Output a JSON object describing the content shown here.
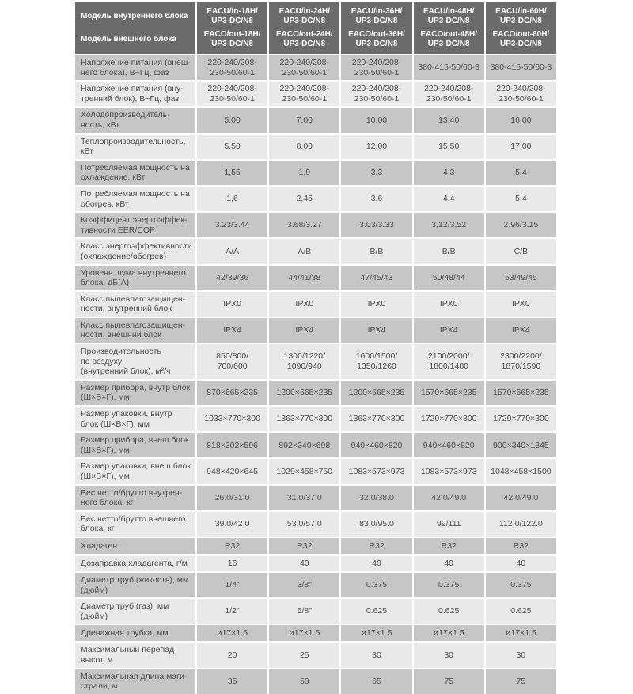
{
  "colors": {
    "header_bg": "#6b6b6b",
    "header_text": "#ffffff",
    "row_dark_bg": "#c6c6c6",
    "row_light_bg": "#e9e9e9",
    "body_text": "#4d4d4d",
    "page_bg": "#ffffff"
  },
  "table": {
    "header": {
      "indoor_model_label": "Модель внутреннего блока",
      "outdoor_model_label": "Модель внешнего блока",
      "models": [
        {
          "indoor": "EACU/in-18H/\nUP3-DC/N8",
          "outdoor": "EACO/out-18H/\nUP3-DC/N8"
        },
        {
          "indoor": "EACU/in-24H/\nUP3-DC/N8",
          "outdoor": "EACO/out-24H/\nUP3-DC/N8"
        },
        {
          "indoor": "EACU/in-36H/\nUP3-DC/N8",
          "outdoor": "EACO/out-36H/\nUP3-DC/N8"
        },
        {
          "indoor": "EACU/in-48H/\nUP3-DC/N8",
          "outdoor": "EACO/out-48H/\nUP3-DC/N8"
        },
        {
          "indoor": "EACU/in-60H/\nUP3-DC/N8",
          "outdoor": "EACO/out-60H/\nUP3-DC/N8"
        }
      ]
    },
    "rows": [
      {
        "label": "Напряжение питания (внеш-\nнего блока), В~Гц, фаз",
        "values": [
          "220-240/208-\n230-50/60-1",
          "220-240/208-\n230-50/60-1",
          "220-240/208-\n230-50/60-1",
          "380-415-50/60-3",
          "380-415-50/60-3"
        ]
      },
      {
        "label": "Напряжение питания (вну-\nтренний блок), В~Гц, фаз",
        "values": [
          "220-240/208-\n230-50/60-1",
          "220-240/208-\n230-50/60-1",
          "220-240/208-\n230-50/60-1",
          "220-240/208-\n230-50/60-1",
          "220-240/208-\n230-50/60-1"
        ]
      },
      {
        "label": "Холодопроизводитель-\nность, кВт",
        "values": [
          "5.00",
          "7.00",
          "10.00",
          "13.40",
          "16.00"
        ]
      },
      {
        "label": "Теплопроизводительность,\nкВт",
        "values": [
          "5.50",
          "8.00",
          "12.00",
          "15.50",
          "17.00"
        ]
      },
      {
        "label": "Потребляемая мощность на\nохлаждение, кВт",
        "values": [
          "1,55",
          "1,9",
          "3,3",
          "4,3",
          "5,4"
        ]
      },
      {
        "label": "Потребляемая мощность на\nобогрев, кВт",
        "values": [
          "1,6",
          "2,45",
          "3,6",
          "4,4",
          "5,4"
        ]
      },
      {
        "label": "Коэффицент энергоэффек-\nтивности EER/COP",
        "values": [
          "3.23/3.44",
          "3.68/3.27",
          "3.03/3.33",
          "3,12/3,52",
          "2.96/3.15"
        ]
      },
      {
        "label": "Класс энергоэффективности\n(охлаждение/обогрев)",
        "values": [
          "А/А",
          "А/В",
          "В/В",
          "В/В",
          "С/В"
        ]
      },
      {
        "label": "Уровень шума внутреннего\nблока, дБ(А)",
        "values": [
          "42/39/36",
          "44/41/38",
          "47/45/43",
          "50/48/44",
          "53/49/45"
        ]
      },
      {
        "label": "Класс пылевлагозащищен-\nности, внутренний блок",
        "values": [
          "IPX0",
          "IPX0",
          "IPX0",
          "IPX0",
          "IPX0"
        ]
      },
      {
        "label": "Класс пылевлагозащищен-\nности, внешний блок",
        "values": [
          "IPX4",
          "IPX4",
          "IPX4",
          "IPX4",
          "IPX4"
        ]
      },
      {
        "label": "Производительность\nпо воздуху\n(внутренний блок), м³/ч",
        "values": [
          "850/800/\n700/600",
          "1300/1220/\n1090/940",
          "1600/1500/\n1350/1260",
          "2100/2000/\n1800/1480",
          "2300/2200/\n1870/1590"
        ]
      },
      {
        "label": "Размер прибора, внутр блок\n(Ш×В×Г), мм",
        "values": [
          "870×665×235",
          "1200×665×235",
          "1200×665×235",
          "1570×665×235",
          "1570×665×235"
        ]
      },
      {
        "label": "Размер упаковки, внутр\nблок (Ш×В×Г), мм",
        "values": [
          "1033×770×300",
          "1363×770×300",
          "1363×770×300",
          "1729×770×300",
          "1729×770×300"
        ]
      },
      {
        "label": "Размер прибора, внеш блок\n(Ш×В×Г), мм",
        "values": [
          "818×302×596",
          "892×340×698",
          "940×460×820",
          "940×460×820",
          "900×340×1345"
        ]
      },
      {
        "label": "Размер упаковки, внеш блок\n(Ш×В×Г), мм",
        "values": [
          "948×420×645",
          "1029×458×750",
          "1083×573×973",
          "1083×573×973",
          "1048×458×1500"
        ]
      },
      {
        "label": "Вес нетто/брутто внутрен-\nнего блока, кг",
        "values": [
          "26.0/31.0",
          "31.0/37.0",
          "32.0/38.0",
          "42.0/49.0",
          "42.0/49.0"
        ]
      },
      {
        "label": "Вес нетто/брутто внешнего\nблока, кг",
        "values": [
          "39.0/42.0",
          "53.0/57.0",
          "83.0/95.0",
          "99/111",
          "112.0/122.0"
        ]
      },
      {
        "label": "Хладагент",
        "values": [
          "R32",
          "R32",
          "R32",
          "R32",
          "R32"
        ]
      },
      {
        "label": "Дозаправка хладагента, г/м",
        "values": [
          "16",
          "40",
          "40",
          "40",
          "40"
        ]
      },
      {
        "label": "Диаметр труб (жикость), мм\n(дюйм)",
        "values": [
          "1/4\"",
          "3/8\"",
          "0.375",
          "0.375",
          "0.375"
        ]
      },
      {
        "label": "Диаметр труб (газ), мм\n(дюйм)",
        "values": [
          "1/2\"",
          "5/8\"",
          "0.625",
          "0.625",
          "0.625"
        ]
      },
      {
        "label": "Дренажная трубка, мм",
        "values": [
          "ø17×1.5",
          "ø17×1.5",
          "ø17×1.5",
          "ø17×1.5",
          "ø17×1.5"
        ]
      },
      {
        "label": "Максимальный перепад\nвысот, м",
        "values": [
          "20",
          "25",
          "30",
          "30",
          "30"
        ]
      },
      {
        "label": "Максимальная длина маги-\nстрали, м",
        "values": [
          "35",
          "50",
          "65",
          "75",
          "75"
        ]
      }
    ]
  }
}
